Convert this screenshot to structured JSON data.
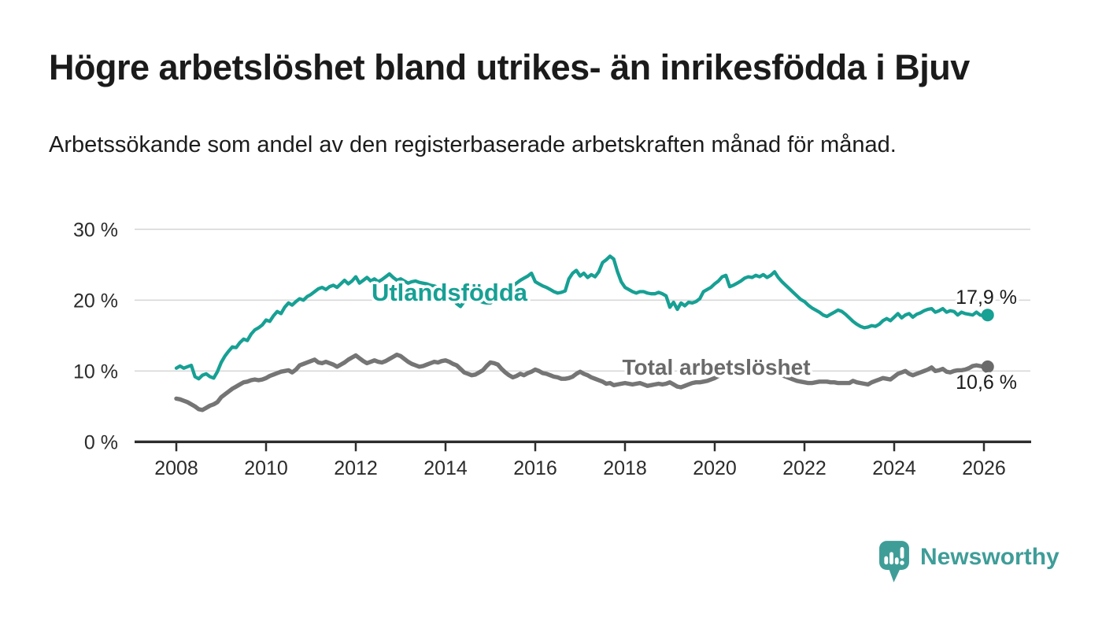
{
  "header": {
    "title": "Högre arbetslöshet bland utrikes- än inrikesfödda i Bjuv",
    "subtitle": "Arbetssökande som andel av den registerbaserade arbetskraften månad för månad."
  },
  "footer": {
    "brand": "Newsworthy"
  },
  "colors": {
    "utlandsfodda_line": "#17a094",
    "total_line": "#757575",
    "total_label": "#6a6a6a",
    "axis": "#2d2d2d",
    "gridline": "#d8d8d8",
    "text": "#1b1b1b",
    "logo_teal": "#3f9d98"
  },
  "chart_data": {
    "type": "line",
    "title": "Högre arbetslöshet bland utrikes- än inrikesfödda i Bjuv",
    "subtitle": "Arbetssökande som andel av den registerbaserade arbetskraften månad för månad.",
    "xlabel": "",
    "ylabel": "",
    "grid": "horizontal-only",
    "legend_position": "inline-labels-on-lines",
    "x_axis": {
      "ticks": [
        2008,
        2010,
        2012,
        2014,
        2016,
        2018,
        2020,
        2022,
        2024,
        2026
      ],
      "tick_labels": [
        "2008",
        "2010",
        "2012",
        "2014",
        "2016",
        "2018",
        "2020",
        "2022",
        "2024",
        "2026"
      ]
    },
    "y_axis": {
      "ticks": [
        0,
        10,
        20,
        30
      ],
      "tick_labels": [
        "0 %",
        "10 %",
        "20 %",
        "30 %"
      ],
      "range": [
        0,
        30
      ]
    },
    "series": [
      {
        "name": "Utlandsfödda",
        "color": "#17a094",
        "label_color": "#17a094",
        "end_label": "17,9 %",
        "end_value": 17.9,
        "start_year": 2008.0,
        "step_years": 0.0833333,
        "values": [
          10.4,
          10.7,
          10.4,
          10.6,
          10.8,
          9.2,
          8.9,
          9.4,
          9.6,
          9.2,
          9.0,
          9.9,
          11.2,
          12.1,
          12.8,
          13.4,
          13.3,
          14.0,
          14.5,
          14.3,
          15.2,
          15.8,
          16.1,
          16.5,
          17.2,
          17.0,
          17.8,
          18.4,
          18.1,
          19.0,
          19.6,
          19.3,
          19.8,
          20.2,
          20.0,
          20.5,
          20.8,
          21.2,
          21.6,
          21.8,
          21.5,
          21.9,
          22.1,
          21.8,
          22.3,
          22.8,
          22.3,
          22.7,
          23.3,
          22.4,
          22.8,
          23.2,
          22.7,
          23.0,
          22.6,
          22.9,
          23.3,
          23.7,
          23.2,
          22.8,
          23.0,
          22.7,
          22.4,
          22.6,
          22.7,
          22.5,
          22.4,
          22.3,
          22.1,
          22.0,
          21.8,
          21.6,
          21.4,
          20.8,
          20.2,
          19.5,
          19.1,
          19.8,
          20.1,
          20.3,
          20.1,
          19.9,
          19.7,
          19.6,
          19.6,
          20.1,
          20.5,
          20.9,
          21.2,
          21.6,
          22.0,
          22.4,
          22.8,
          23.1,
          23.4,
          23.8,
          22.6,
          22.3,
          22.0,
          21.8,
          21.5,
          21.2,
          21.0,
          21.1,
          21.3,
          23.0,
          23.8,
          24.2,
          23.4,
          23.8,
          23.2,
          23.6,
          23.3,
          24.0,
          25.3,
          25.7,
          26.2,
          25.8,
          24.0,
          22.6,
          21.8,
          21.5,
          21.2,
          21.0,
          21.2,
          21.2,
          21.0,
          20.9,
          20.9,
          21.1,
          20.9,
          20.6,
          19.0,
          19.7,
          18.7,
          19.6,
          19.2,
          19.7,
          19.6,
          19.8,
          20.2,
          21.2,
          21.5,
          21.8,
          22.3,
          22.7,
          23.3,
          23.5,
          21.9,
          22.1,
          22.4,
          22.7,
          23.1,
          23.3,
          23.2,
          23.5,
          23.3,
          23.6,
          23.2,
          23.5,
          24.0,
          23.2,
          22.6,
          22.1,
          21.6,
          21.1,
          20.6,
          20.1,
          19.8,
          19.3,
          18.9,
          18.6,
          18.3,
          17.9,
          17.7,
          18.0,
          18.3,
          18.6,
          18.4,
          18.0,
          17.5,
          17.0,
          16.6,
          16.3,
          16.1,
          16.2,
          16.4,
          16.3,
          16.6,
          17.1,
          17.4,
          17.1,
          17.6,
          18.1,
          17.5,
          17.9,
          18.1,
          17.6,
          18.0,
          18.2,
          18.5,
          18.7,
          18.8,
          18.3,
          18.5,
          18.8,
          18.3,
          18.5,
          18.4,
          17.9,
          18.3,
          18.1,
          18.0,
          17.9,
          18.3,
          17.9,
          17.8,
          17.9
        ]
      },
      {
        "name": "Total arbetslöshet",
        "color": "#757575",
        "label_color": "#6a6a6a",
        "end_label": "10,6 %",
        "end_value": 10.6,
        "start_year": 2008.0,
        "step_years": 0.0833333,
        "values": [
          6.1,
          6.0,
          5.8,
          5.6,
          5.3,
          5.0,
          4.6,
          4.5,
          4.8,
          5.1,
          5.3,
          5.6,
          6.3,
          6.7,
          7.1,
          7.5,
          7.8,
          8.1,
          8.4,
          8.5,
          8.7,
          8.8,
          8.7,
          8.8,
          9.0,
          9.3,
          9.5,
          9.7,
          9.9,
          10.0,
          10.1,
          9.8,
          10.2,
          10.8,
          11.0,
          11.2,
          11.4,
          11.6,
          11.2,
          11.1,
          11.3,
          11.1,
          10.9,
          10.6,
          10.9,
          11.2,
          11.6,
          11.9,
          12.2,
          11.8,
          11.4,
          11.1,
          11.3,
          11.5,
          11.3,
          11.2,
          11.4,
          11.7,
          12.0,
          12.3,
          12.1,
          11.7,
          11.3,
          11.0,
          10.8,
          10.6,
          10.7,
          10.9,
          11.1,
          11.3,
          11.2,
          11.4,
          11.5,
          11.3,
          11.0,
          10.8,
          10.3,
          9.8,
          9.6,
          9.4,
          9.5,
          9.8,
          10.1,
          10.7,
          11.2,
          11.1,
          10.9,
          10.3,
          9.8,
          9.4,
          9.1,
          9.3,
          9.6,
          9.4,
          9.7,
          9.9,
          10.2,
          10.0,
          9.7,
          9.6,
          9.4,
          9.2,
          9.1,
          8.9,
          8.9,
          9.0,
          9.2,
          9.6,
          9.9,
          9.6,
          9.4,
          9.1,
          8.9,
          8.7,
          8.5,
          8.2,
          8.3,
          8.0,
          8.1,
          8.2,
          8.3,
          8.2,
          8.1,
          8.2,
          8.3,
          8.1,
          7.9,
          8.0,
          8.1,
          8.2,
          8.1,
          8.2,
          8.4,
          8.1,
          7.8,
          7.7,
          7.9,
          8.1,
          8.3,
          8.4,
          8.4,
          8.5,
          8.6,
          8.8,
          9.0,
          9.3,
          9.6,
          9.9,
          10.1,
          10.4,
          10.5,
          10.4,
          10.2,
          10.3,
          10.4,
          10.4,
          10.5,
          10.6,
          10.3,
          10.1,
          9.9,
          9.6,
          9.4,
          9.2,
          9.0,
          8.8,
          8.6,
          8.5,
          8.4,
          8.3,
          8.3,
          8.4,
          8.5,
          8.5,
          8.5,
          8.4,
          8.4,
          8.3,
          8.3,
          8.3,
          8.3,
          8.6,
          8.4,
          8.3,
          8.2,
          8.1,
          8.4,
          8.6,
          8.8,
          9.0,
          8.9,
          8.8,
          9.2,
          9.6,
          9.8,
          10.0,
          9.6,
          9.4,
          9.6,
          9.8,
          10.0,
          10.2,
          10.5,
          10.0,
          10.1,
          10.3,
          9.9,
          9.8,
          10.0,
          10.1,
          10.1,
          10.2,
          10.4,
          10.7,
          10.8,
          10.7,
          10.6,
          10.6
        ]
      }
    ]
  }
}
